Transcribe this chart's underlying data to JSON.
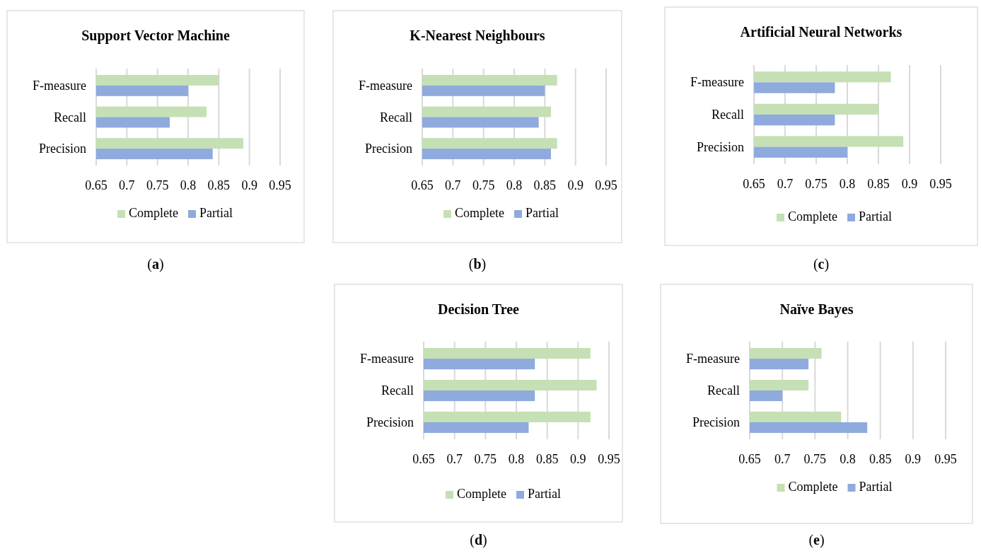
{
  "chart_data": [
    {
      "type": "bar",
      "orientation": "horizontal",
      "title": "Support Vector Machine",
      "categories": [
        "F-measure",
        "Recall",
        "Precision"
      ],
      "series": [
        {
          "name": "Complete",
          "color": "#c5e0b4",
          "values": [
            0.85,
            0.83,
            0.89
          ]
        },
        {
          "name": "Partial",
          "color": "#8faadc",
          "values": [
            0.8,
            0.77,
            0.84
          ]
        }
      ],
      "xlim": [
        0.65,
        0.95
      ],
      "xticks": [
        0.65,
        0.7,
        0.75,
        0.8,
        0.85,
        0.9,
        0.95
      ],
      "grid": "x",
      "legend": "bottom",
      "annotations": [
        "(a)"
      ]
    },
    {
      "type": "bar",
      "orientation": "horizontal",
      "title": "K-Nearest Neighbours",
      "categories": [
        "F-measure",
        "Recall",
        "Precision"
      ],
      "series": [
        {
          "name": "Complete",
          "color": "#c5e0b4",
          "values": [
            0.87,
            0.86,
            0.87
          ]
        },
        {
          "name": "Partial",
          "color": "#8faadc",
          "values": [
            0.85,
            0.84,
            0.86
          ]
        }
      ],
      "xlim": [
        0.65,
        0.95
      ],
      "xticks": [
        0.65,
        0.7,
        0.75,
        0.8,
        0.85,
        0.9,
        0.95
      ],
      "grid": "x",
      "legend": "bottom",
      "annotations": [
        "(b)"
      ]
    },
    {
      "type": "bar",
      "orientation": "horizontal",
      "title": "Artificial Neural Networks",
      "categories": [
        "F-measure",
        "Recall",
        "Precision"
      ],
      "series": [
        {
          "name": "Complete",
          "color": "#c5e0b4",
          "values": [
            0.87,
            0.85,
            0.89
          ]
        },
        {
          "name": "Partial",
          "color": "#8faadc",
          "values": [
            0.78,
            0.78,
            0.8
          ]
        }
      ],
      "xlim": [
        0.65,
        0.95
      ],
      "xticks": [
        0.65,
        0.7,
        0.75,
        0.8,
        0.85,
        0.9,
        0.95
      ],
      "grid": "x",
      "legend": "bottom",
      "annotations": [
        "(c)"
      ]
    },
    {
      "type": "bar",
      "orientation": "horizontal",
      "title": "Decision Tree",
      "categories": [
        "F-measure",
        "Recall",
        "Precision"
      ],
      "series": [
        {
          "name": "Complete",
          "color": "#c5e0b4",
          "values": [
            0.92,
            0.93,
            0.92
          ]
        },
        {
          "name": "Partial",
          "color": "#8faadc",
          "values": [
            0.83,
            0.83,
            0.82
          ]
        }
      ],
      "xlim": [
        0.65,
        0.95
      ],
      "xticks": [
        0.65,
        0.7,
        0.75,
        0.8,
        0.85,
        0.9,
        0.95
      ],
      "grid": "x",
      "legend": "bottom",
      "annotations": [
        "(d)"
      ]
    },
    {
      "type": "bar",
      "orientation": "horizontal",
      "title": "Naïve Bayes",
      "categories": [
        "F-measure",
        "Recall",
        "Precision"
      ],
      "series": [
        {
          "name": "Complete",
          "color": "#c5e0b4",
          "values": [
            0.76,
            0.74,
            0.79
          ]
        },
        {
          "name": "Partial",
          "color": "#8faadc",
          "values": [
            0.74,
            0.7,
            0.83
          ]
        }
      ],
      "xlim": [
        0.65,
        0.95
      ],
      "xticks": [
        0.65,
        0.7,
        0.75,
        0.8,
        0.85,
        0.9,
        0.95
      ],
      "grid": "x",
      "legend": "bottom",
      "annotations": [
        "(e)"
      ]
    }
  ]
}
